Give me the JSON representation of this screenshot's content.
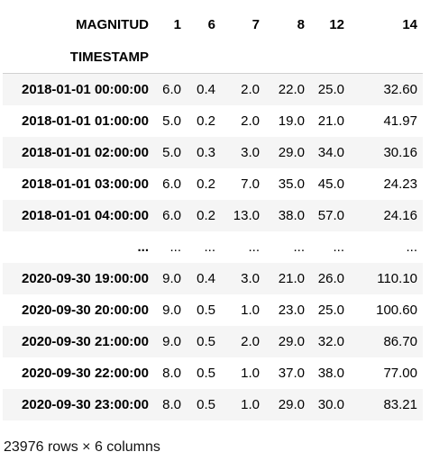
{
  "table": {
    "columns_header_label": "MAGNITUD",
    "index_label": "TIMESTAMP",
    "columns": [
      "1",
      "6",
      "7",
      "8",
      "12",
      "14"
    ],
    "rows": [
      {
        "index": "2018-01-01 00:00:00",
        "values": [
          "6.0",
          "0.4",
          "2.0",
          "22.0",
          "25.0",
          "32.60"
        ]
      },
      {
        "index": "2018-01-01 01:00:00",
        "values": [
          "5.0",
          "0.2",
          "2.0",
          "19.0",
          "21.0",
          "41.97"
        ]
      },
      {
        "index": "2018-01-01 02:00:00",
        "values": [
          "5.0",
          "0.3",
          "3.0",
          "29.0",
          "34.0",
          "30.16"
        ]
      },
      {
        "index": "2018-01-01 03:00:00",
        "values": [
          "6.0",
          "0.2",
          "7.0",
          "35.0",
          "45.0",
          "24.23"
        ]
      },
      {
        "index": "2018-01-01 04:00:00",
        "values": [
          "6.0",
          "0.2",
          "13.0",
          "38.0",
          "57.0",
          "24.16"
        ]
      },
      {
        "index": "...",
        "values": [
          "...",
          "...",
          "...",
          "...",
          "...",
          "..."
        ]
      },
      {
        "index": "2020-09-30 19:00:00",
        "values": [
          "9.0",
          "0.4",
          "3.0",
          "21.0",
          "26.0",
          "110.10"
        ]
      },
      {
        "index": "2020-09-30 20:00:00",
        "values": [
          "9.0",
          "0.5",
          "1.0",
          "23.0",
          "25.0",
          "100.60"
        ]
      },
      {
        "index": "2020-09-30 21:00:00",
        "values": [
          "9.0",
          "0.5",
          "2.0",
          "29.0",
          "32.0",
          "86.70"
        ]
      },
      {
        "index": "2020-09-30 22:00:00",
        "values": [
          "8.0",
          "0.5",
          "1.0",
          "37.0",
          "38.0",
          "77.00"
        ]
      },
      {
        "index": "2020-09-30 23:00:00",
        "values": [
          "8.0",
          "0.5",
          "1.0",
          "29.0",
          "30.0",
          "83.21"
        ]
      }
    ]
  },
  "footer": {
    "shape_text": "23976 rows × 6 columns"
  },
  "colors": {
    "striped_row": "#f5f5f5",
    "header_divider": "#d0d0d0"
  }
}
